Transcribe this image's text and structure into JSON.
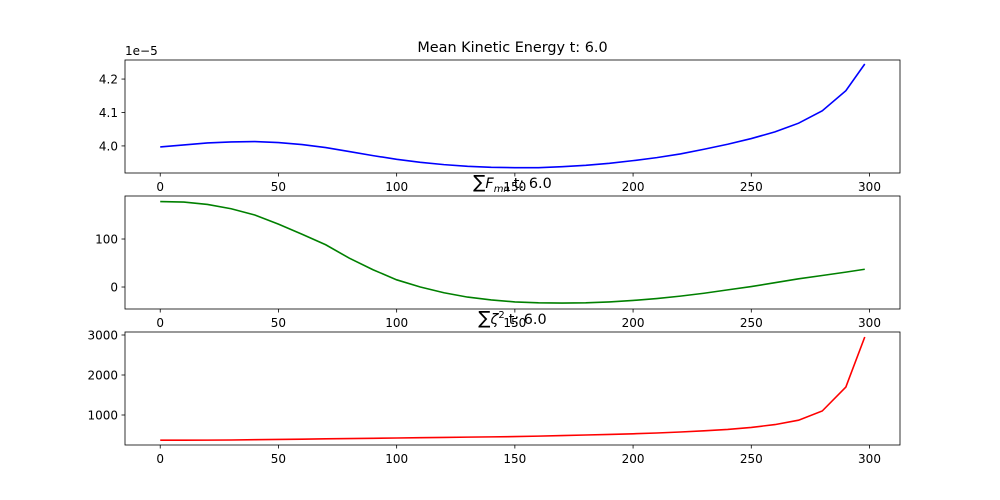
{
  "chart_data": [
    {
      "type": "line",
      "title": "Mean Kinetic Energy t: 6.0",
      "y_offset_label": "1e−5",
      "x": [
        0,
        10,
        20,
        30,
        40,
        50,
        60,
        70,
        80,
        90,
        100,
        110,
        120,
        130,
        140,
        150,
        160,
        170,
        180,
        190,
        200,
        210,
        220,
        230,
        240,
        250,
        260,
        270,
        280,
        290,
        298
      ],
      "series": [
        {
          "color": "#0000ff",
          "values": [
            3.997,
            4.003,
            4.009,
            4.012,
            4.013,
            4.01,
            4.004,
            3.995,
            3.983,
            3.971,
            3.96,
            3.951,
            3.944,
            3.939,
            3.936,
            3.935,
            3.935,
            3.938,
            3.942,
            3.948,
            3.956,
            3.965,
            3.976,
            3.99,
            4.005,
            4.022,
            4.042,
            4.068,
            4.105,
            4.165,
            4.245
          ]
        }
      ],
      "xlim": [
        -14.9,
        312.9
      ],
      "xticks": [
        0,
        50,
        100,
        150,
        200,
        250,
        300
      ],
      "ylim": [
        3.919,
        4.257
      ],
      "yticks": [
        {
          "value": 4,
          "label": "4.0"
        },
        4.1,
        4.2
      ]
    },
    {
      "type": "line",
      "title_symbol": "∑",
      "title_base": "F",
      "title_sub": "mn",
      "title_rest": "t: 6.0",
      "x": [
        0,
        10,
        20,
        30,
        40,
        50,
        60,
        70,
        80,
        90,
        100,
        110,
        120,
        130,
        140,
        150,
        160,
        170,
        180,
        190,
        200,
        210,
        220,
        230,
        240,
        250,
        260,
        270,
        280,
        290,
        298
      ],
      "series": [
        {
          "color": "#008000",
          "values": [
            178,
            177,
            172,
            163,
            150,
            131,
            110,
            88,
            60,
            36,
            15,
            0,
            -12,
            -21,
            -27,
            -31,
            -33,
            -33.5,
            -33,
            -31,
            -28,
            -24,
            -19,
            -13,
            -6,
            1,
            9,
            17,
            24,
            31,
            37
          ]
        }
      ],
      "xlim": [
        -14.9,
        312.9
      ],
      "xticks": [
        0,
        50,
        100,
        150,
        200,
        250,
        300
      ],
      "ylim": [
        -45.8,
        189.6
      ],
      "yticks": [
        0,
        100
      ]
    },
    {
      "type": "line",
      "title_symbol": "∑",
      "title_base": "ζ",
      "title_sup": "2",
      "title_rest": "t: 6.0",
      "x": [
        0,
        10,
        20,
        30,
        40,
        50,
        60,
        70,
        80,
        90,
        100,
        110,
        120,
        130,
        140,
        150,
        160,
        170,
        180,
        190,
        200,
        210,
        220,
        230,
        240,
        250,
        260,
        270,
        280,
        290,
        298
      ],
      "series": [
        {
          "color": "#ff0000",
          "values": [
            370,
            370,
            372,
            375,
            382,
            390,
            395,
            405,
            412,
            418,
            425,
            432,
            440,
            447,
            453,
            460,
            472,
            485,
            500,
            515,
            530,
            550,
            575,
            605,
            640,
            690,
            760,
            870,
            1100,
            1700,
            2950
          ]
        }
      ],
      "xlim": [
        -14.9,
        312.9
      ],
      "xticks": [
        0,
        50,
        100,
        150,
        200,
        250,
        300
      ],
      "ylim": [
        250,
        3075
      ],
      "yticks": [
        1000,
        2000,
        3000
      ]
    }
  ]
}
